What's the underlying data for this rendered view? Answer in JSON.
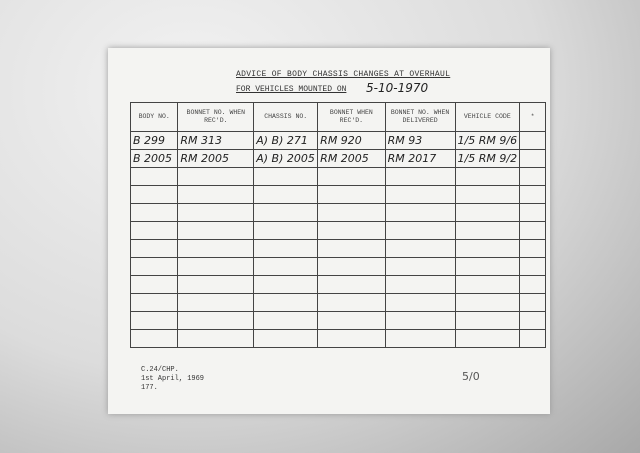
{
  "title_line1": "ADVICE OF BODY CHASSIS CHANGES AT OVERHAUL",
  "title_line2": "FOR VEHICLES MOUNTED ON",
  "date": "5-10-1970",
  "columns": [
    "BODY NO.",
    "BONNET NO. WHEN REC'D.",
    "CHASSIS NO.",
    "BONNET WHEN REC'D.",
    "BONNET NO. WHEN DELIVERED",
    "VEHICLE CODE",
    "*"
  ],
  "rows": [
    [
      "B 299",
      "RM 313",
      "A) B) 271",
      "RM 920",
      "RM 93",
      "1/5 RM 9/6",
      ""
    ],
    [
      "B 2005",
      "RM 2005",
      "A) B) 2005",
      "RM 2005",
      "RM 2017",
      "1/5 RM 9/2",
      ""
    ]
  ],
  "empty_rows": 10,
  "footer": [
    "C.24/CHP.",
    "1st April, 1969",
    "177."
  ],
  "page_mark": "5/0"
}
